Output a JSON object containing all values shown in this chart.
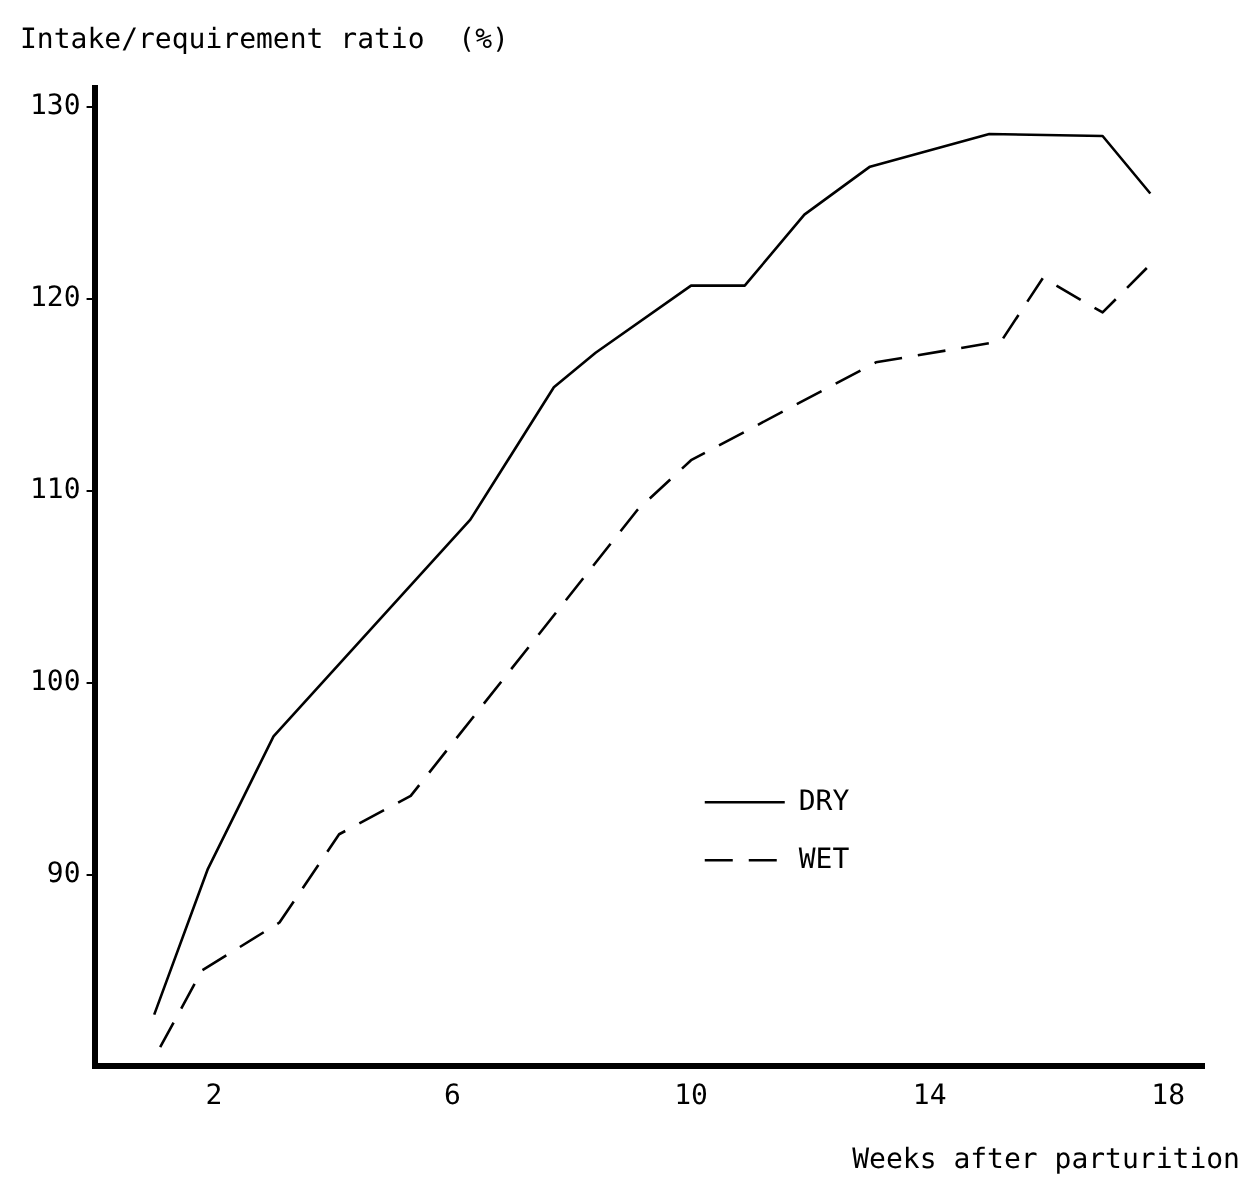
{
  "chart_data": {
    "type": "line",
    "xlabel": "Weeks after parturition",
    "ylabel": "Intake/requirement ratio  (%)",
    "xlim": [
      0,
      18.6
    ],
    "xticks": [
      2,
      6,
      10,
      14,
      18
    ],
    "ylim": [
      80,
      131
    ],
    "yticks": [
      90,
      100,
      110,
      120,
      130
    ],
    "grid": false,
    "legend": "right",
    "marker": "none",
    "series": [
      {
        "name": "DRY",
        "color": "#000000",
        "line_style": "solid",
        "x": [
          1,
          1.9,
          3,
          6.3,
          7.7,
          8.4,
          10,
          10.9,
          11.9,
          13,
          15,
          16.9,
          17.7
        ],
        "values": [
          82.7,
          90.3,
          97.2,
          108.5,
          115.4,
          117.2,
          120.7,
          120.7,
          124.4,
          126.9,
          128.6,
          128.5,
          125.5
        ]
      },
      {
        "name": "WET",
        "color": "#000000",
        "line_style": "dashed",
        "x": [
          1.1,
          1.8,
          3.1,
          4.1,
          5.3,
          9.1,
          10,
          13.1,
          15.2,
          15.9,
          16.9,
          17.7
        ],
        "values": [
          81,
          85,
          87.5,
          92.1,
          94.1,
          109,
          111.6,
          116.7,
          117.8,
          121.1,
          119.3,
          121.8
        ]
      }
    ]
  }
}
